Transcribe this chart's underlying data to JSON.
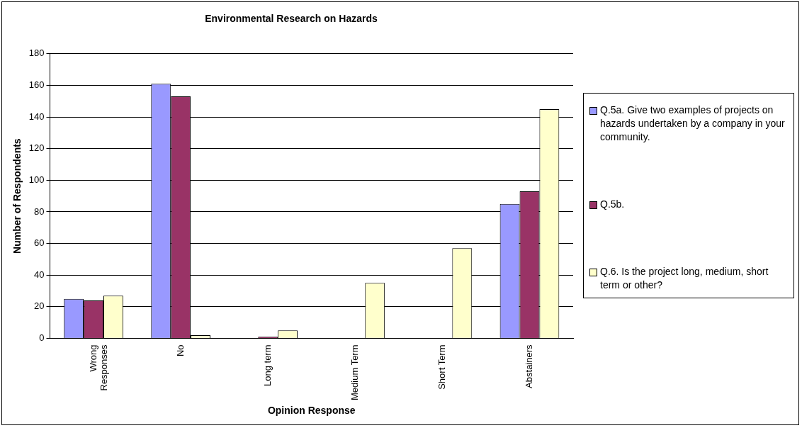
{
  "chart_data": {
    "type": "bar",
    "title": "Environmental Research on Hazards",
    "xlabel": "Opinion Response",
    "ylabel": "Number of Respondents",
    "categories": [
      "Wrong Responses",
      "No",
      "Long term",
      "Medium Term",
      "Short Term",
      "Abstainers"
    ],
    "series": [
      {
        "name": "Q.5a. Give two examples of projects on hazards undertaken by a company in your community.",
        "color": "#9999ff",
        "values": [
          25,
          161,
          0,
          0,
          0,
          85
        ]
      },
      {
        "name": "Q.5b.",
        "color": "#993366",
        "values": [
          24,
          153,
          1,
          0,
          0,
          93
        ]
      },
      {
        "name": "Q.6. Is the project long, medium, short term or other?",
        "color": "#ffffcc",
        "values": [
          27,
          2,
          5,
          35,
          57,
          145
        ]
      }
    ],
    "ylim": [
      0,
      180
    ],
    "yticks": [
      0,
      20,
      40,
      60,
      80,
      100,
      120,
      140,
      160,
      180
    ],
    "grid": "y",
    "legend": "right"
  }
}
